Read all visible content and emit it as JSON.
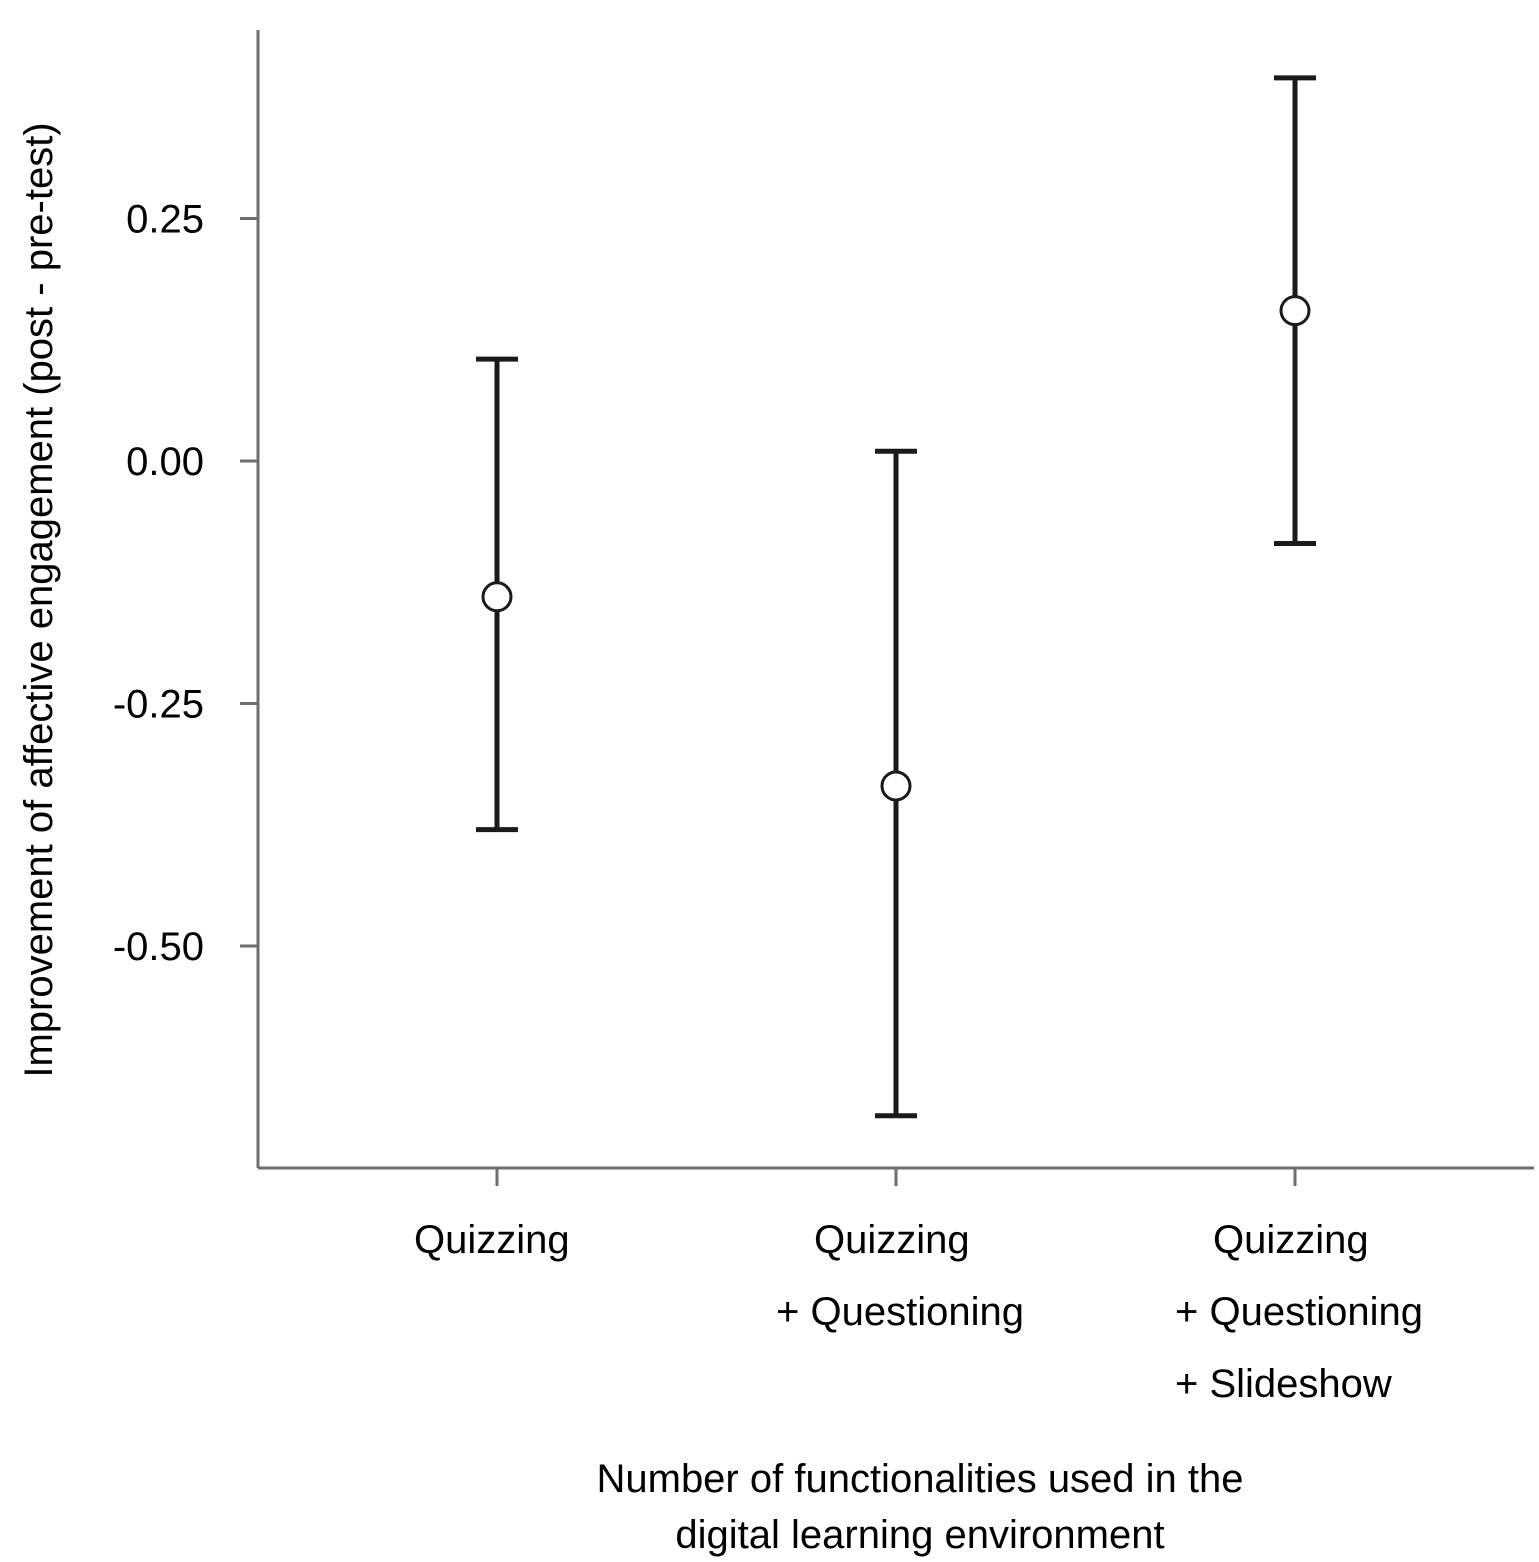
{
  "chart_data": {
    "type": "errorbar",
    "title": "",
    "xlabel_lines": [
      "Number of functionalities used in the",
      "digital learning environment"
    ],
    "ylabel": "Improvement of affective engagement (post - pre-test)",
    "categories": [
      {
        "lines": [
          "Quizzing"
        ]
      },
      {
        "lines": [
          "Quizzing",
          "+ Questioning"
        ]
      },
      {
        "lines": [
          "Quizzing",
          "+ Questioning",
          "+ Slideshow"
        ]
      }
    ],
    "means": [
      -0.14,
      -0.335,
      0.155
    ],
    "lower": [
      -0.38,
      -0.675,
      -0.085
    ],
    "upper": [
      0.105,
      0.01,
      0.395
    ],
    "yticks": [
      0.25,
      0.0,
      -0.25,
      -0.5
    ],
    "ytick_labels": [
      "0.25",
      "0.00",
      "-0.25",
      "-0.50"
    ],
    "ylim": [
      -0.72,
      0.445
    ],
    "grid": false,
    "legend": "none",
    "colors": {
      "axis": "#6e6e6e",
      "marker_edge": "#1a1a1a",
      "marker_fill": "#ffffff",
      "error_bar": "#1a1a1a"
    }
  }
}
